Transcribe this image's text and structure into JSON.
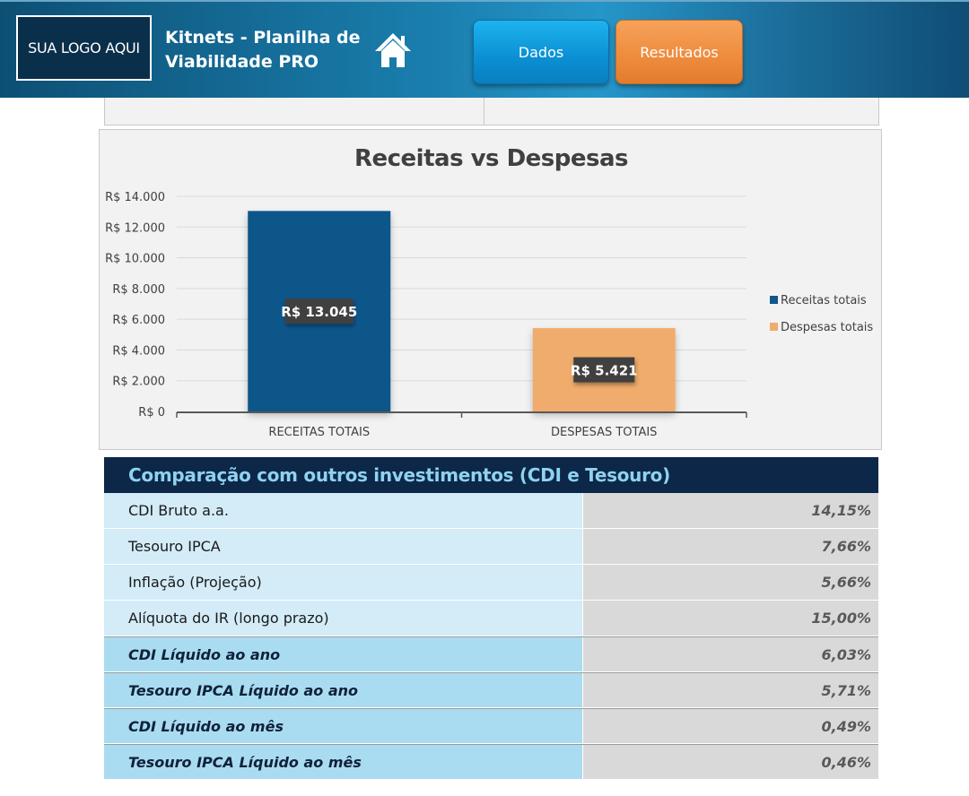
{
  "header": {
    "logo_text": "SUA LOGO AQUI",
    "title_line1": "Kitnets - Planilha de",
    "title_line2": "Viabilidade PRO",
    "home_icon": "home-icon",
    "nav": {
      "dados_label": "Dados",
      "resultados_label": "Resultados"
    },
    "colors": {
      "dados": "#0b8fd3",
      "resultados": "#ee8b3c",
      "header": "#1a7fae"
    }
  },
  "chart_data": {
    "type": "bar",
    "title": "Receitas vs Despesas",
    "categories": [
      "RECEITAS TOTAIS",
      "DESPESAS TOTAIS"
    ],
    "series": [
      {
        "name": "Receitas totais",
        "color": "#0d578a"
      },
      {
        "name": "Despesas totais",
        "color": "#f0ac6c"
      }
    ],
    "values": [
      13045,
      5421
    ],
    "data_labels": [
      "R$ 13.045",
      "R$ 5.421"
    ],
    "ylim": [
      0,
      14000
    ],
    "yticks": [
      0,
      2000,
      4000,
      6000,
      8000,
      10000,
      12000,
      14000
    ],
    "ytick_labels": [
      "R$ 0",
      "R$ 2.000",
      "R$ 4.000",
      "R$ 6.000",
      "R$ 8.000",
      "R$ 10.000",
      "R$ 12.000",
      "R$ 14.000"
    ],
    "grid": true,
    "legend_position": "right"
  },
  "comparison": {
    "title": "Comparação com outros investimentos (CDI e Tesouro)",
    "rows": [
      {
        "label": "CDI Bruto a.a.",
        "value": "14,15%"
      },
      {
        "label": "Tesouro IPCA",
        "value": "7,66%"
      },
      {
        "label": "Inflação (Projeção)",
        "value": "5,66%"
      },
      {
        "label": "Alíquota do IR (longo prazo)",
        "value": "15,00%"
      },
      {
        "label": "CDI Líquido ao ano",
        "value": "6,03%"
      },
      {
        "label": "Tesouro IPCA Líquido ao ano",
        "value": "5,71%"
      },
      {
        "label": "CDI Líquido ao mês",
        "value": "0,49%"
      },
      {
        "label": "Tesouro IPCA Líquido ao mês",
        "value": "0,46%"
      }
    ]
  }
}
